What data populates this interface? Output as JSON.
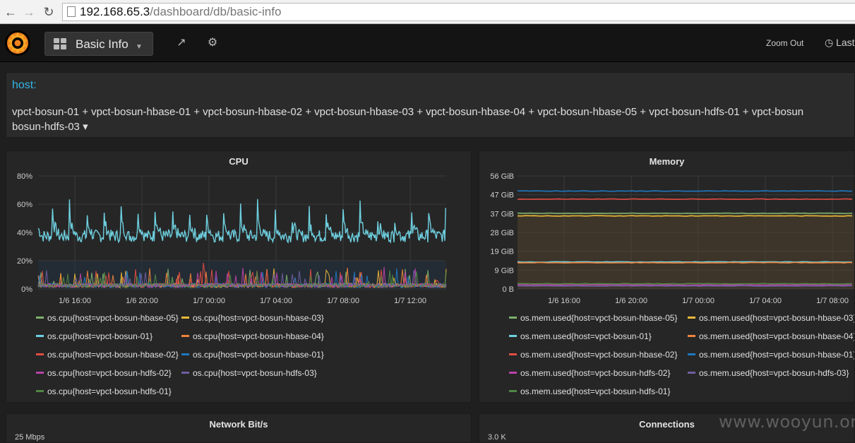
{
  "browser": {
    "url_host": "192.168.65.3",
    "url_path": "/dashboard/db/basic-info"
  },
  "navbar": {
    "dashboard_title": "Basic Info",
    "zoom_out_label": "Zoom Out",
    "time_range_label": "Last"
  },
  "template": {
    "host_label": "host:",
    "host_value_line1": "vpct-bosun-01 + vpct-bosun-hbase-01 + vpct-bosun-hbase-02 + vpct-bosun-hbase-03 + vpct-bosun-hbase-04 + vpct-bosun-hbase-05 + vpct-bosun-hdfs-01 + vpct-bosun",
    "host_value_line2": "bosun-hdfs-03",
    "dropdown_caret": "▾"
  },
  "colors": {
    "green": "#7eb26d",
    "yellow": "#eab839",
    "cyan": "#6ed0e0",
    "orange": "#ef843c",
    "red": "#e24d42",
    "blue": "#1f78c1",
    "magenta": "#ba43a9",
    "purple": "#705da0",
    "darkgreen": "#508642"
  },
  "panels": {
    "cpu": {
      "title": "CPU",
      "chart_data": {
        "type": "line",
        "y_ticks": [
          "80%",
          "60%",
          "40%",
          "20%",
          "0%"
        ],
        "x_ticks": [
          "1/6 16:00",
          "1/6 20:00",
          "1/7 00:00",
          "1/7 04:00",
          "1/7 08:00",
          "1/7 12:00"
        ],
        "ylim": [
          0,
          80
        ],
        "series": [
          {
            "name": "os.cpu{host=vpct-bosun-hbase-05}",
            "color": "#7eb26d"
          },
          {
            "name": "os.cpu{host=vpct-bosun-hbase-03}",
            "color": "#eab839"
          },
          {
            "name": "os.cpu{host=vpct-bosun-01}",
            "color": "#6ed0e0"
          },
          {
            "name": "os.cpu{host=vpct-bosun-hbase-04}",
            "color": "#ef843c"
          },
          {
            "name": "os.cpu{host=vpct-bosun-hbase-02}",
            "color": "#e24d42"
          },
          {
            "name": "os.cpu{host=vpct-bosun-hbase-01}",
            "color": "#1f78c1"
          },
          {
            "name": "os.cpu{host=vpct-bosun-hdfs-02}",
            "color": "#ba43a9"
          },
          {
            "name": "os.cpu{host=vpct-bosun-hdfs-03}",
            "color": "#705da0"
          },
          {
            "name": "os.cpu{host=vpct-bosun-hdfs-01}",
            "color": "#508642"
          }
        ]
      }
    },
    "memory": {
      "title": "Memory",
      "chart_data": {
        "type": "area",
        "y_ticks": [
          "56 GiB",
          "47 GiB",
          "37 GiB",
          "28 GiB",
          "19 GiB",
          "9 GiB",
          "0 B"
        ],
        "x_ticks": [
          "1/6 16:00",
          "1/6 20:00",
          "1/7 00:00",
          "1/7 04:00",
          "1/7 08:00"
        ],
        "series": [
          {
            "name": "os.mem.used{host=vpct-bosun-hbase-05}",
            "color": "#7eb26d"
          },
          {
            "name": "os.mem.used{host=vpct-bosun-hbase-03}",
            "color": "#eab839"
          },
          {
            "name": "os.mem.used{host=vpct-bosun-01}",
            "color": "#6ed0e0"
          },
          {
            "name": "os.mem.used{host=vpct-bosun-hbase-04}",
            "color": "#ef843c"
          },
          {
            "name": "os.mem.used{host=vpct-bosun-hbase-02}",
            "color": "#e24d42"
          },
          {
            "name": "os.mem.used{host=vpct-bosun-hbase-01}",
            "color": "#1f78c1"
          },
          {
            "name": "os.mem.used{host=vpct-bosun-hdfs-02}",
            "color": "#ba43a9"
          },
          {
            "name": "os.mem.used{host=vpct-bosun-hdfs-03}",
            "color": "#705da0"
          },
          {
            "name": "os.mem.used{host=vpct-bosun-hdfs-01}",
            "color": "#508642"
          }
        ]
      }
    },
    "network": {
      "title": "Network Bit/s",
      "y_top_tick": "25 Mbps"
    },
    "connections": {
      "title": "Connections",
      "y_top_tick": "3.0 K"
    }
  },
  "watermark": "www.wooyun.org"
}
